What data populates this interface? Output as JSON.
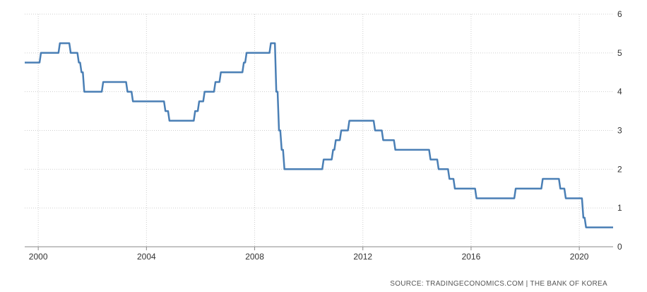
{
  "chart_data": {
    "type": "line",
    "title": "",
    "xlabel": "",
    "ylabel": "",
    "xlim": [
      1999.5,
      2021.25
    ],
    "ylim": [
      0,
      6
    ],
    "x_ticks": [
      2000,
      2004,
      2008,
      2012,
      2016,
      2020
    ],
    "x_tick_labels": [
      "2000",
      "2004",
      "2008",
      "2012",
      "2016",
      "2020"
    ],
    "y_ticks": [
      0,
      1,
      2,
      3,
      4,
      5,
      6
    ],
    "y_tick_labels": [
      "0",
      "1",
      "2",
      "3",
      "4",
      "5",
      "6"
    ],
    "y_axis_side": "right",
    "grid": true,
    "series": [
      {
        "color": "#4a7fb5",
        "step": true,
        "x": [
          1999.5,
          2000.1,
          2000.8,
          2001.2,
          2001.5,
          2001.6,
          2001.7,
          2002.4,
          2003.3,
          2003.5,
          2004.7,
          2004.85,
          2004.95,
          2005.8,
          2005.95,
          2006.15,
          2006.55,
          2006.75,
          2007.6,
          2007.7,
          2008.6,
          2008.8,
          2008.9,
          2009.0,
          2009.1,
          2010.55,
          2010.9,
          2011.0,
          2011.2,
          2011.5,
          2012.45,
          2012.75,
          2013.2,
          2014.5,
          2014.65,
          2014.8,
          2015.2,
          2015.4,
          2016.2,
          2017.65,
          2018.65,
          2019.3,
          2019.5,
          2019.75,
          2020.15,
          2020.25,
          2020.4,
          2021.25
        ],
        "values": [
          4.75,
          5.0,
          5.25,
          5.0,
          4.75,
          4.5,
          4.0,
          4.25,
          4.0,
          3.75,
          3.5,
          3.25,
          3.25,
          3.5,
          3.75,
          4.0,
          4.25,
          4.5,
          4.75,
          5.0,
          5.25,
          4.0,
          3.0,
          2.5,
          2.0,
          2.25,
          2.5,
          2.75,
          3.0,
          3.25,
          3.0,
          2.75,
          2.5,
          2.25,
          2.25,
          2.0,
          1.75,
          1.5,
          1.25,
          1.5,
          1.75,
          1.5,
          1.25,
          1.25,
          0.75,
          0.5,
          0.5,
          0.5
        ]
      }
    ]
  },
  "source_text": "SOURCE: TRADINGECONOMICS.COM  |  THE BANK OF KOREA"
}
